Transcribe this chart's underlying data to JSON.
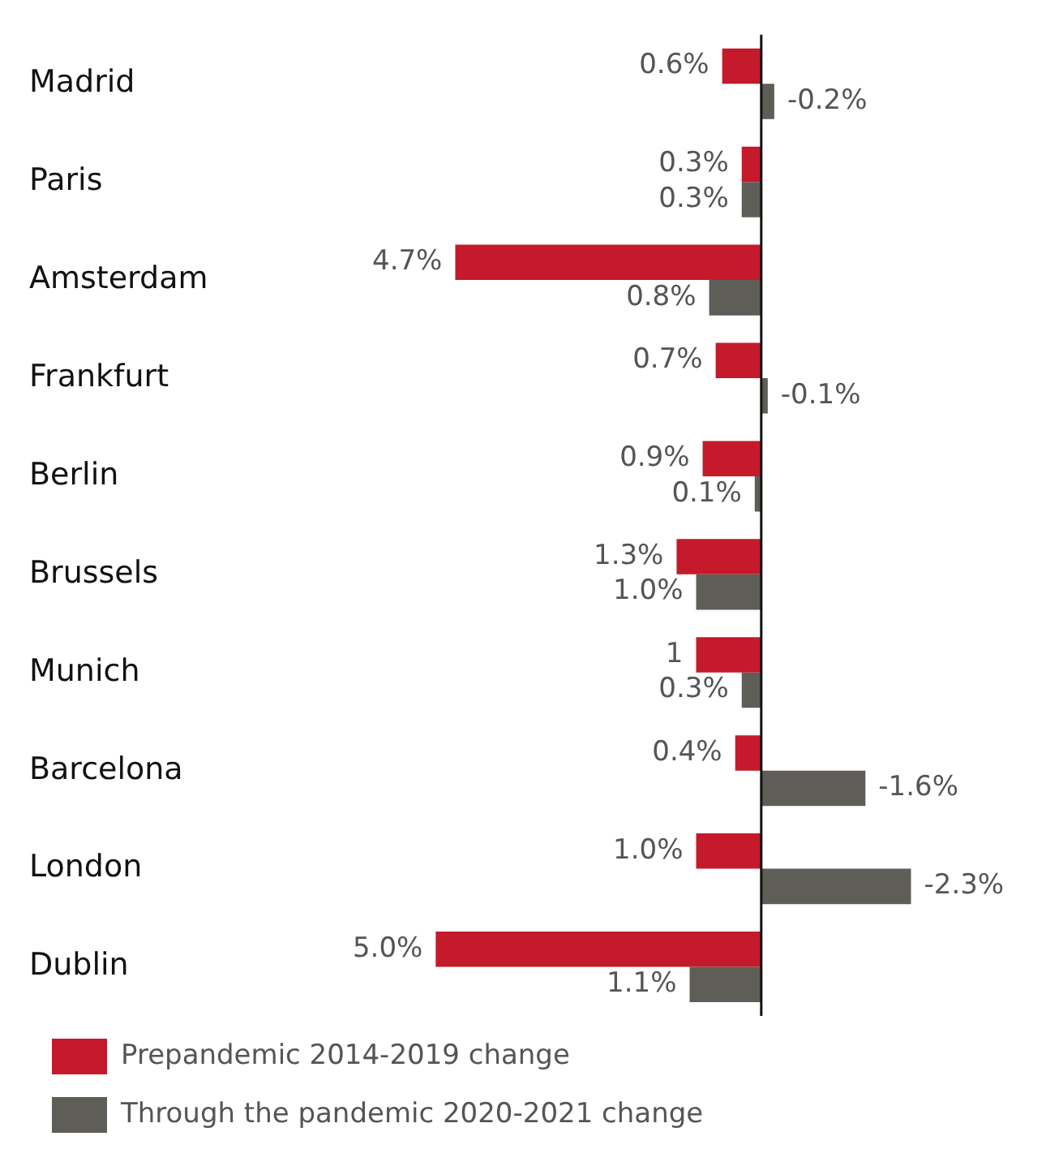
{
  "chart_data": {
    "type": "bar",
    "orientation": "horizontal",
    "categories": [
      "Madrid",
      "Paris",
      "Amsterdam",
      "Frankfurt",
      "Berlin",
      "Brussels",
      "Munich",
      "Barcelona",
      "London",
      "Dublin"
    ],
    "series": [
      {
        "name": "Prepandemic 2014-2019 change",
        "color": "#c41a2b",
        "values": [
          0.6,
          0.3,
          4.7,
          0.7,
          0.9,
          1.3,
          1,
          0.4,
          1.0,
          5.0
        ],
        "value_labels": [
          "0.6%",
          "0.3%",
          "4.7%",
          "0.7%",
          "0.9%",
          "1.3%",
          "1",
          "0.4%",
          "1.0%",
          "5.0%"
        ]
      },
      {
        "name": "Through the pandemic 2020-2021 change",
        "color": "#5f5d58",
        "values": [
          -0.2,
          0.3,
          0.8,
          -0.1,
          0.1,
          1.0,
          0.3,
          -1.6,
          -2.3,
          1.1
        ],
        "value_labels": [
          "-0.2%",
          "0.3%",
          "0.8%",
          "-0.1%",
          "0.1%",
          "1.0%",
          "0.3%",
          "-1.6%",
          "-2.3%",
          "1.1%"
        ]
      }
    ],
    "tick_labels": "y",
    "grid": false,
    "legend": "bottom left"
  }
}
